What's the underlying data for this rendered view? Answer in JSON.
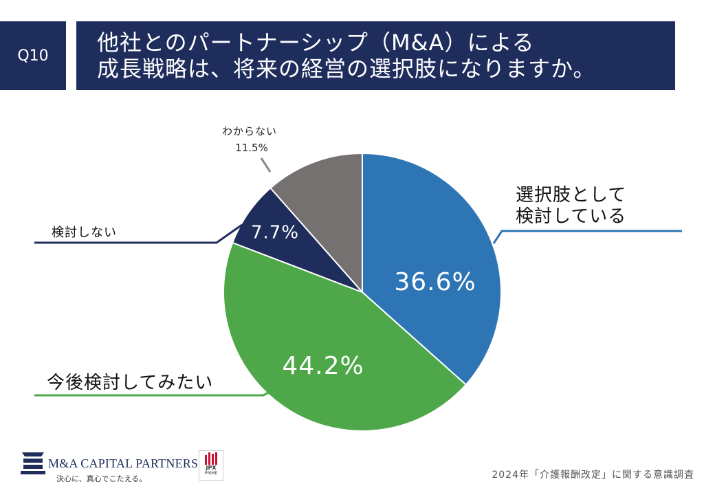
{
  "header": {
    "question_label": "Q10",
    "title_line1": "他社とのパートナーシップ（M&A）による",
    "title_line2": "成長戦略は、将来の経営の選択肢になりますか。"
  },
  "chart_data": {
    "type": "pie",
    "title": "他社とのパートナーシップ（M&A）による成長戦略は、将来の経営の選択肢になりますか。",
    "slices": [
      {
        "label": "選択肢として検討している",
        "label_lines": [
          "選択肢として",
          "検討している"
        ],
        "value": 36.6,
        "display": "36.6%",
        "color": "#2e75b6"
      },
      {
        "label": "今後検討してみたい",
        "label_lines": [
          "今後検討してみたい"
        ],
        "value": 44.2,
        "display": "44.2%",
        "color": "#4ea84a"
      },
      {
        "label": "検討しない",
        "label_lines": [
          "検討しない"
        ],
        "value": 7.7,
        "display": "7.7%",
        "color": "#1f2d5c"
      },
      {
        "label": "わからない",
        "label_lines": [
          "わからない"
        ],
        "value": 11.5,
        "display": "11.5%",
        "color": "#767171"
      }
    ],
    "start": "12 o'clock",
    "direction": "clockwise"
  },
  "footer": {
    "company_name": "M&A CAPITAL PARTNERS",
    "tagline": "決心に、真心でこたえる。",
    "jpx_label": "JPX",
    "jpx_sub": "PRIME",
    "source": "2024年「介護報酬改定」に関する意識調査"
  }
}
